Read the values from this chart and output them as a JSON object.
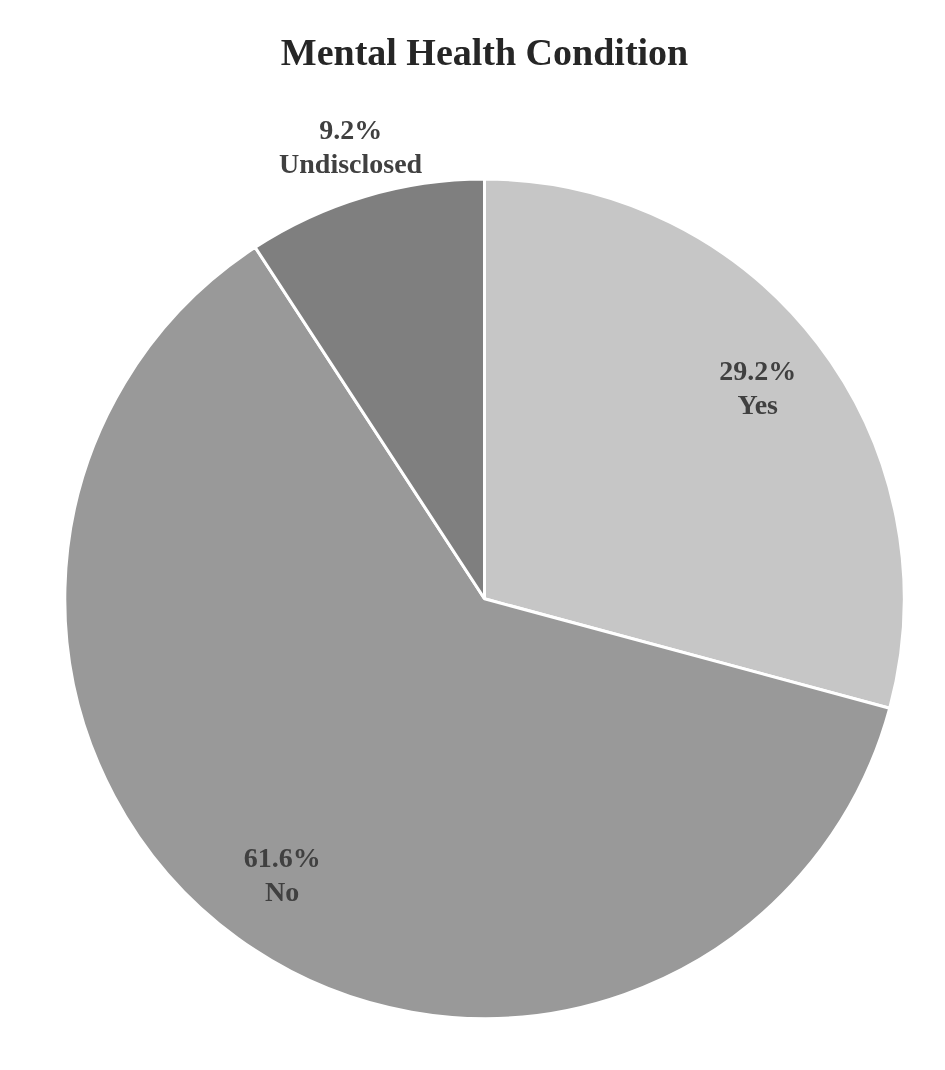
{
  "chart_data": {
    "type": "pie",
    "title": "Mental Health Condition",
    "categories": [
      "Yes",
      "No",
      "Undisclosed"
    ],
    "values": [
      29.2,
      61.6,
      9.2
    ],
    "colors": [
      "#c6c6c6",
      "#999999",
      "#7f7f7f"
    ],
    "value_labels": [
      "29.2%",
      "61.6%",
      "9.2%"
    ],
    "legend": false
  }
}
